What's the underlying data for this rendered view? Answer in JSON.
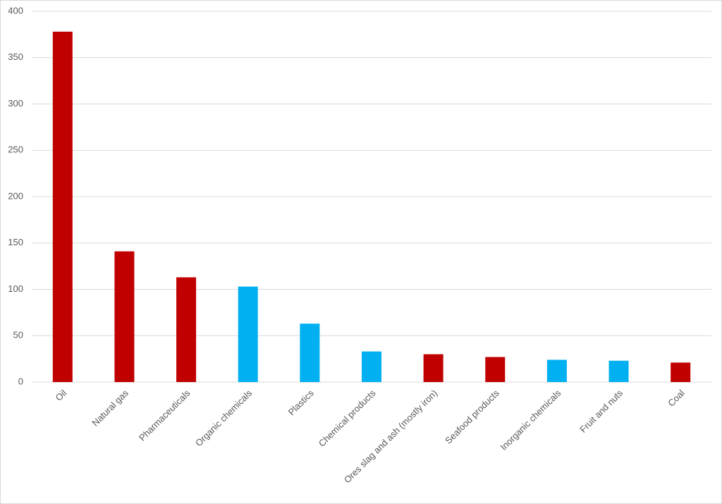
{
  "chart_data": {
    "type": "bar",
    "categories": [
      "Oil",
      "Natural gas",
      "Pharmaceuticals",
      "Organic chemicals",
      "Plastics",
      "Chemical products",
      "Ores slag and ash (mostly iron)",
      "Seafood products",
      "Inorganic chemicals",
      "Fruit and nuts",
      "Coal"
    ],
    "values": [
      378,
      141,
      113,
      103,
      63,
      33,
      30,
      27,
      24,
      23,
      21
    ],
    "colors": [
      "#c00000",
      "#c00000",
      "#c00000",
      "#00b0f0",
      "#00b0f0",
      "#00b0f0",
      "#c00000",
      "#c00000",
      "#00b0f0",
      "#00b0f0",
      "#c00000"
    ],
    "ylim": [
      0,
      400
    ],
    "yticks": [
      0,
      50,
      100,
      150,
      200,
      250,
      300,
      350,
      400
    ],
    "grid": true
  }
}
